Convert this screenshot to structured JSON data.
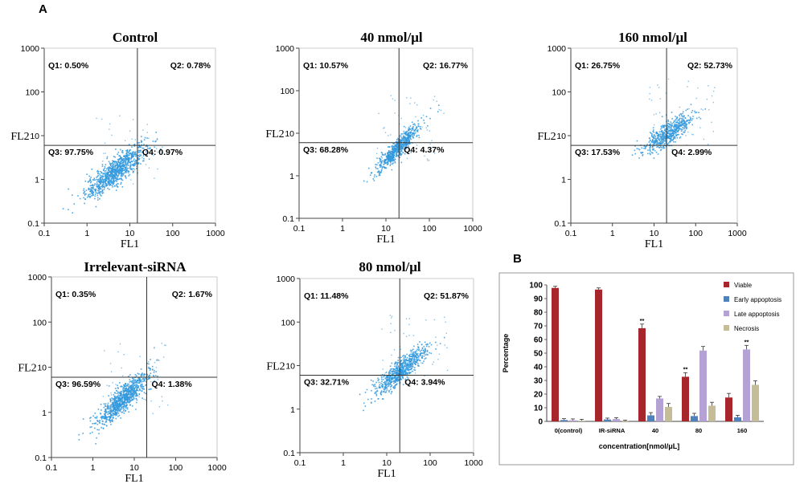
{
  "labels": {
    "panel_a": "A",
    "panel_b": "B"
  },
  "chart_data": [
    {
      "type": "scatter",
      "title": "Control",
      "xlabel": "FL1",
      "ylabel": "FL2",
      "scale": "log",
      "xlim": [
        0.1,
        1000
      ],
      "ylim": [
        0.1,
        1000
      ],
      "xticks": [
        "0.1",
        "1",
        "10",
        "100",
        "1000"
      ],
      "yticks": [
        "0.1",
        "1",
        "10",
        "100",
        "1000"
      ],
      "gate": {
        "x": 15,
        "y": 6
      },
      "quadrants": [
        "Q1: 0.50%",
        "Q2: 0.78%",
        "Q3: 97.75%",
        "Q4: 0.97%"
      ],
      "cluster": {
        "cx": 4.5,
        "cy": 1.6,
        "spread": 0.35,
        "tilt": 0.75,
        "n": 900
      },
      "point_color": "#3399dd"
    },
    {
      "type": "scatter",
      "title": "40 nmol/μl",
      "xlabel": "FL1",
      "ylabel": "FL2",
      "scale": "log",
      "xlim": [
        0.1,
        1000
      ],
      "ylim": [
        0.1,
        1000
      ],
      "xticks": [
        "0.1",
        "1",
        "10",
        "100",
        "1000"
      ],
      "yticks": [
        "0.1",
        "1",
        "10",
        "100",
        "1000"
      ],
      "gate": {
        "x": 20,
        "y": 6
      },
      "quadrants": [
        "Q1: 10.57%",
        "Q2: 16.77%",
        "Q3: 68.28%",
        "Q4: 4.37%"
      ],
      "cluster": {
        "cx": 18,
        "cy": 4.5,
        "spread": 0.25,
        "tilt": 1.0,
        "n": 650
      },
      "point_color": "#3399dd"
    },
    {
      "type": "scatter",
      "title": "160 nmol/μl",
      "xlabel": "FL1",
      "ylabel": "FL2",
      "scale": "log",
      "xlim": [
        0.1,
        1000
      ],
      "ylim": [
        0.1,
        1000
      ],
      "xticks": [
        "0.1",
        "1",
        "10",
        "100",
        "1000"
      ],
      "yticks": [
        "0.1",
        "1",
        "10",
        "100",
        "1000"
      ],
      "gate": {
        "x": 20,
        "y": 6
      },
      "quadrants": [
        "Q1: 26.75%",
        "Q2: 52.73%",
        "Q3: 17.53%",
        "Q4: 2.99%"
      ],
      "cluster": {
        "cx": 22,
        "cy": 12,
        "spread": 0.3,
        "tilt": 0.6,
        "n": 550
      },
      "point_color": "#3399dd"
    },
    {
      "type": "scatter",
      "title": "Irrelevant-siRNA",
      "xlabel": "FL1",
      "ylabel": "FL2",
      "scale": "log",
      "xlim": [
        0.1,
        1000
      ],
      "ylim": [
        0.1,
        1000
      ],
      "xticks": [
        "0.1",
        "1",
        "10",
        "100",
        "1000"
      ],
      "yticks": [
        "0.1",
        "1",
        "10",
        "100",
        "1000"
      ],
      "gate": {
        "x": 20,
        "y": 6
      },
      "quadrants": [
        "Q1: 0.35%",
        "Q2: 1.67%",
        "Q3: 96.59%",
        "Q4: 1.38%"
      ],
      "cluster": {
        "cx": 5,
        "cy": 2.0,
        "spread": 0.33,
        "tilt": 0.8,
        "n": 900
      },
      "point_color": "#3399dd"
    },
    {
      "type": "scatter",
      "title": "80 nmol/μl",
      "xlabel": "FL1",
      "ylabel": "FL2",
      "scale": "log",
      "xlim": [
        0.1,
        1000
      ],
      "ylim": [
        0.1,
        1000
      ],
      "xticks": [
        "0.1",
        "1",
        "10",
        "100",
        "1000"
      ],
      "yticks": [
        "0.1",
        "1",
        "10",
        "100",
        "1000"
      ],
      "gate": {
        "x": 20,
        "y": 6
      },
      "quadrants": [
        "Q1: 11.48%",
        "Q2: 51.87%",
        "Q3: 32.71%",
        "Q4: 3.94%"
      ],
      "cluster": {
        "cx": 20,
        "cy": 8,
        "spread": 0.3,
        "tilt": 0.8,
        "n": 700
      },
      "point_color": "#3399dd"
    },
    {
      "type": "bar",
      "xlabel": "concentration[nmol/μL]",
      "ylabel": "Percentage",
      "ylim": [
        0,
        100
      ],
      "yticks": [
        0,
        10,
        20,
        30,
        40,
        50,
        60,
        70,
        80,
        90,
        100
      ],
      "categories": [
        "0(control)",
        "IR-siRNA",
        "40",
        "80",
        "160"
      ],
      "series": [
        {
          "name": "Viable",
          "values": [
            97.8,
            96.6,
            68.3,
            32.7,
            17.5
          ],
          "errors": [
            1.2,
            1.2,
            3,
            3,
            3
          ],
          "color": "#a6262b"
        },
        {
          "name": "Early appoptosis",
          "values": [
            1.0,
            1.4,
            4.4,
            3.9,
            3.0
          ],
          "errors": [
            1,
            1,
            2,
            2,
            1.5
          ],
          "color": "#4f81bd"
        },
        {
          "name": "Late appoptosis",
          "values": [
            0.8,
            1.7,
            16.8,
            51.9,
            52.7
          ],
          "errors": [
            1,
            1,
            1.5,
            3,
            3
          ],
          "color": "#b3a2d3"
        },
        {
          "name": "Necrosis",
          "values": [
            0.5,
            0.4,
            10.6,
            11.5,
            26.8
          ],
          "errors": [
            1,
            0.5,
            2.5,
            2.5,
            3
          ],
          "color": "#c4bd97"
        }
      ],
      "significance": [
        {
          "category": "40",
          "series": "Viable",
          "mark": "**"
        },
        {
          "category": "80",
          "series": "Viable",
          "mark": "**"
        },
        {
          "category": "160",
          "series": "Late appoptosis",
          "mark": "**"
        }
      ],
      "legend_position": "top-right"
    }
  ]
}
